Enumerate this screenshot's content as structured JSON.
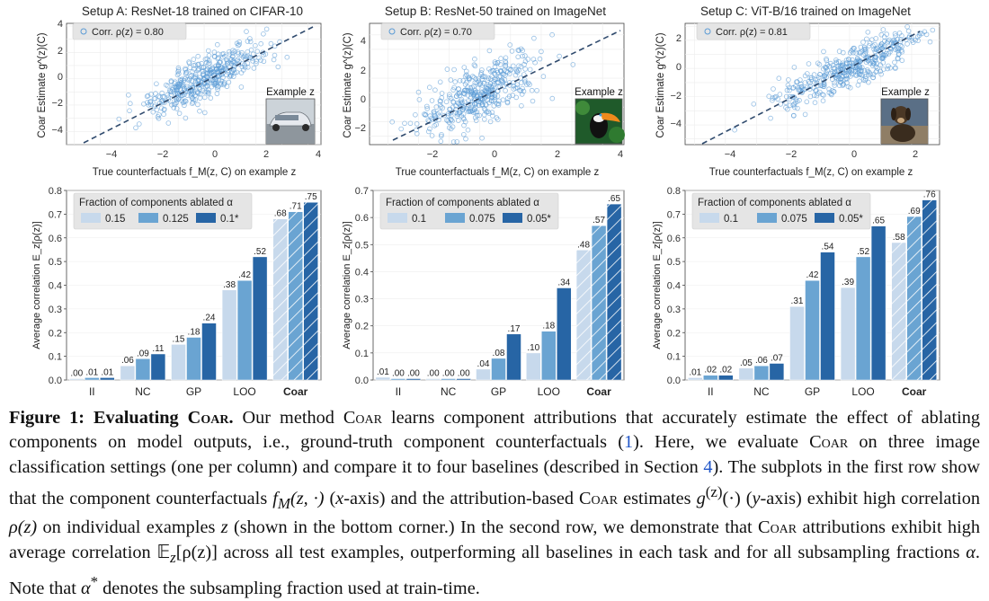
{
  "colors": {
    "scatter_point": "#5b9bd5",
    "fit_line": "#2f4a6d",
    "bar_light": "#c7d9ec",
    "bar_mid": "#6aa4d2",
    "bar_dark": "#2765a5",
    "legend_bg": "#e5e5e5",
    "caption_ref": "#1f55c8"
  },
  "scatter_panels": [
    {
      "title": "Setup A: ResNet-18 trained on CIFAR-10",
      "legend": "Corr. ρ(z) = 0.80",
      "example_label": "Example z",
      "example_icon": "car-image",
      "xlabel": "True counterfactuals  f_M(z, C) on example z",
      "ylabel": "Coar Estimate  g^(z)(C)",
      "xticks": [
        "−4",
        "−2",
        "0",
        "2",
        "4"
      ],
      "yticks": [
        "−4",
        "−2",
        "0",
        "2",
        "4"
      ]
    },
    {
      "title": "Setup B: ResNet-50 trained on ImageNet",
      "legend": "Corr. ρ(z) = 0.70",
      "example_label": "Example z",
      "example_icon": "toucan-image",
      "xlabel": "True counterfactuals  f_M(z, C) on example z",
      "ylabel": "Coar Estimate  g^(z)(C)",
      "xticks": [
        "−2",
        "0",
        "2",
        "4"
      ],
      "yticks": [
        "−2",
        "0",
        "2",
        "4"
      ]
    },
    {
      "title": "Setup C: ViT-B/16 trained on ImageNet",
      "legend": "Corr. ρ(z) = 0.81",
      "example_label": "Example z",
      "example_icon": "dog-image",
      "xlabel": "True counterfactuals  f_M(z, C) on example z",
      "ylabel": "Coar Estimate  g^(z)(C)",
      "xticks": [
        "−4",
        "−2",
        "0",
        "2"
      ],
      "yticks": [
        "−4",
        "−2",
        "0",
        "2"
      ]
    }
  ],
  "chart_data": [
    {
      "type": "scatter",
      "title": "Setup A: ResNet-18 trained on CIFAR-10",
      "corr": 0.8,
      "xlim": [
        -5.3,
        4.5
      ],
      "ylim": [
        -5,
        4.2
      ],
      "fit_line": {
        "slope": 1,
        "intercept": 0
      },
      "xlabel": "True counterfactuals  f_M(z, C) on example z",
      "ylabel": "Coar Estimate  g^(z)(C)"
    },
    {
      "type": "scatter",
      "title": "Setup B: ResNet-50 trained on ImageNet",
      "corr": 0.7,
      "xlim": [
        -3.6,
        4.7
      ],
      "ylim": [
        -3.6,
        4.8
      ],
      "fit_line": {
        "slope": 1,
        "intercept": 0
      },
      "xlabel": "True counterfactuals  f_M(z, C) on example z",
      "ylabel": "Coar Estimate  g^(z)(C)"
    },
    {
      "type": "scatter",
      "title": "Setup C: ViT-B/16 trained on ImageNet",
      "corr": 0.81,
      "xlim": [
        -5.3,
        2.9
      ],
      "ylim": [
        -5.4,
        3.2
      ],
      "fit_line": {
        "slope": 1,
        "intercept": 0
      },
      "xlabel": "True counterfactuals  f_M(z, C) on example z",
      "ylabel": "Coar Estimate  g^(z)(C)"
    },
    {
      "type": "bar",
      "categories": [
        "II",
        "NC",
        "GP",
        "LOO",
        "Coar"
      ],
      "legend_title": "Fraction of components ablated α",
      "ylabel": "Average correlation E_z[ρ(z)]",
      "ylim": [
        0,
        0.8
      ],
      "yticks": [
        0,
        0.1,
        0.2,
        0.3,
        0.4,
        0.5,
        0.6,
        0.7,
        0.8
      ],
      "series": [
        {
          "name": "0.15",
          "values": [
            0.0,
            0.06,
            0.15,
            0.38,
            0.68
          ],
          "labels": [
            ".00",
            ".06",
            ".15",
            ".38",
            ".68"
          ]
        },
        {
          "name": "0.125",
          "values": [
            0.01,
            0.09,
            0.18,
            0.42,
            0.71
          ],
          "labels": [
            ".01",
            ".09",
            ".18",
            ".42",
            ".71"
          ]
        },
        {
          "name": "0.1*",
          "values": [
            0.01,
            0.11,
            0.24,
            0.52,
            0.75
          ],
          "labels": [
            ".01",
            ".11",
            ".24",
            ".52",
            ".75"
          ]
        }
      ]
    },
    {
      "type": "bar",
      "categories": [
        "II",
        "NC",
        "GP",
        "LOO",
        "Coar"
      ],
      "legend_title": "Fraction of components ablated α",
      "ylabel": "Average correlation E_z[ρ(z)]",
      "ylim": [
        0,
        0.7
      ],
      "yticks": [
        0,
        0.1,
        0.2,
        0.3,
        0.4,
        0.5,
        0.6,
        0.7
      ],
      "series": [
        {
          "name": "0.1",
          "values": [
            0.01,
            0.0,
            0.04,
            0.1,
            0.48
          ],
          "labels": [
            ".01",
            ".00",
            ".04",
            ".10",
            ".48"
          ]
        },
        {
          "name": "0.075",
          "values": [
            0.0,
            0.0,
            0.08,
            0.18,
            0.57
          ],
          "labels": [
            ".00",
            ".00",
            ".08",
            ".18",
            ".57"
          ]
        },
        {
          "name": "0.05*",
          "values": [
            0.0,
            0.0,
            0.17,
            0.34,
            0.65
          ],
          "labels": [
            ".00",
            ".00",
            ".17",
            ".34",
            ".65"
          ]
        }
      ]
    },
    {
      "type": "bar",
      "categories": [
        "II",
        "NC",
        "GP",
        "LOO",
        "Coar"
      ],
      "legend_title": "Fraction of components ablated α",
      "ylabel": "Average correlation E_z[ρ(z)]",
      "ylim": [
        0,
        0.8
      ],
      "yticks": [
        0,
        0.1,
        0.2,
        0.3,
        0.4,
        0.5,
        0.6,
        0.7,
        0.8
      ],
      "series": [
        {
          "name": "0.1",
          "values": [
            0.01,
            0.05,
            0.31,
            0.39,
            0.58
          ],
          "labels": [
            ".01",
            ".05",
            ".31",
            ".39",
            ".58"
          ]
        },
        {
          "name": "0.075",
          "values": [
            0.02,
            0.06,
            0.42,
            0.52,
            0.69
          ],
          "labels": [
            ".02",
            ".06",
            ".42",
            ".52",
            ".69"
          ]
        },
        {
          "name": "0.05*",
          "values": [
            0.02,
            0.07,
            0.54,
            0.65,
            0.76
          ],
          "labels": [
            ".02",
            ".07",
            ".54",
            ".65",
            ".76"
          ]
        }
      ]
    }
  ],
  "caption": {
    "label": "Figure 1:",
    "title_pre": "Evaluating ",
    "title_name": "Coar",
    "title_post": ".",
    "s1": "Our method ",
    "name": "Coar",
    "s2": " learns component attributions that accurately estimate the effect of ablating components on model outputs, i.e., ground-truth component counterfactuals (",
    "ref1": "1",
    "s3": "). Here, we evaluate ",
    "s4": " on three image classification settings (one per column) and compare it to four baselines (described in Section ",
    "ref2": "4",
    "s5": "). The subplots in the first row show that the component counterfactuals ",
    "m1": "f",
    "m1sub": "M",
    "m1arg": "(z, ·)",
    "s6": " (",
    "xaxis": "x",
    "s7": "-axis) and the attribution-based ",
    "s8": " estimates ",
    "m2": "g",
    "m2sup": "(z)",
    "m2arg": "(·)",
    "s9": " (",
    "yaxis": "y",
    "s10": "-axis) exhibit high correlation ",
    "m3": "ρ(z)",
    "s11": " on individual examples ",
    "m4": "z",
    "s12": " (shown in the bottom corner.) In the second row, we demonstrate that ",
    "s13": " attributions exhibit high average correlation ",
    "m5": "𝔼",
    "m5sub": "z",
    "m5arg": "[ρ(z)]",
    "s14": " across all test examples, outperforming all baselines in each task and for all subsampling fractions ",
    "m6": "α",
    "s15": ". Note that ",
    "m7": "α",
    "m7sup": "*",
    "s16": " denotes the subsampling fraction used at train-time."
  }
}
